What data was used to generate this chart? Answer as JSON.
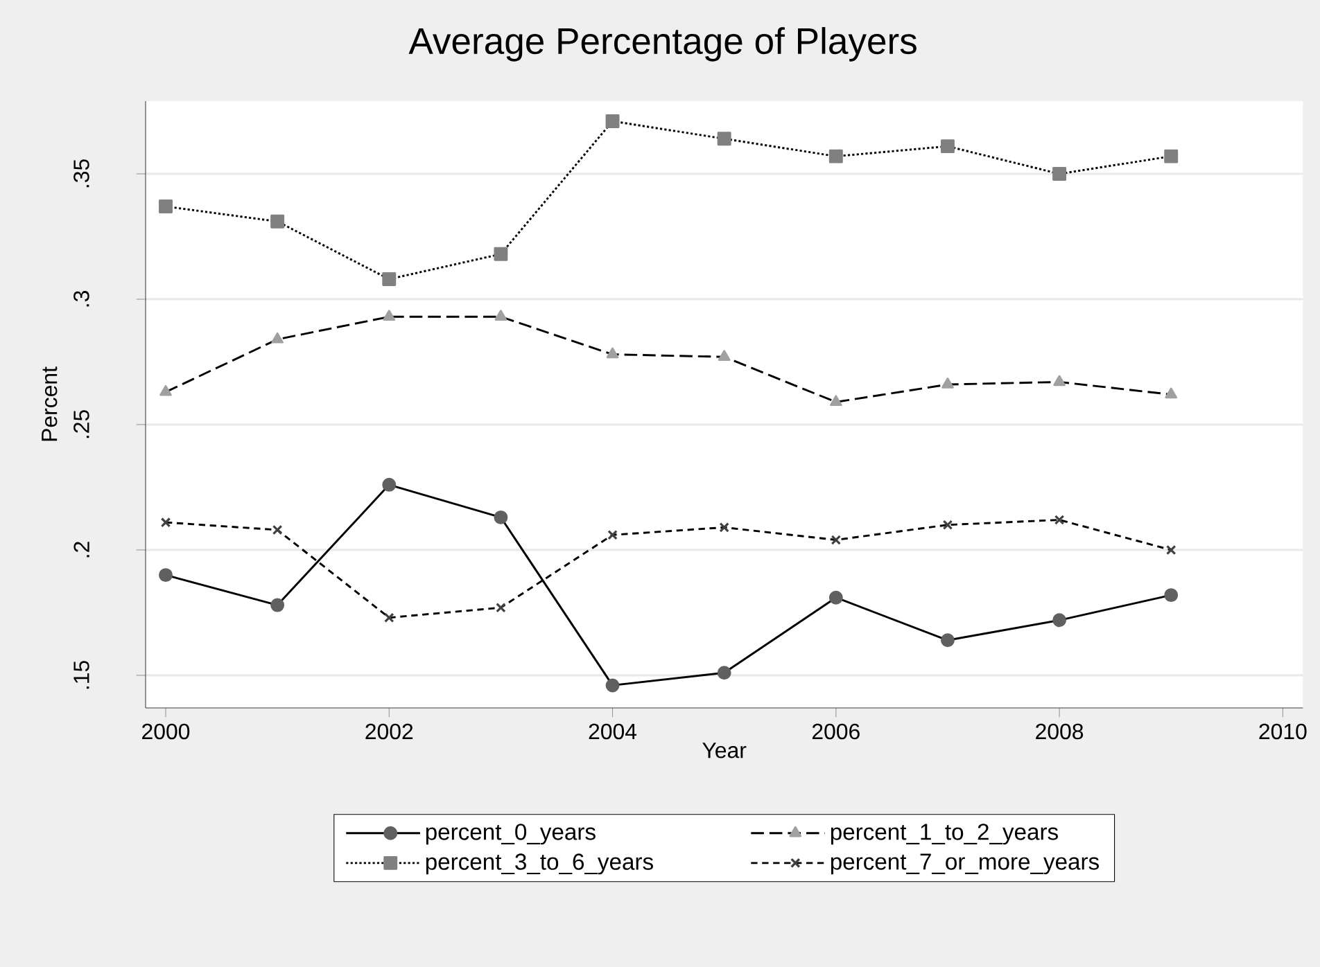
{
  "chart_data": {
    "type": "line",
    "title": "Average Percentage of Players",
    "xlabel": "Year",
    "ylabel": "Percent",
    "x": [
      2000,
      2001,
      2002,
      2003,
      2004,
      2005,
      2006,
      2007,
      2008,
      2009
    ],
    "series": [
      {
        "name": "percent_0_years",
        "color": "#606060",
        "marker": "circle",
        "line_style": "solid",
        "values": [
          0.19,
          0.178,
          0.226,
          0.213,
          0.146,
          0.151,
          0.181,
          0.164,
          0.172,
          0.182
        ]
      },
      {
        "name": "percent_1_to_2_years",
        "color": "#a0a0a0",
        "marker": "triangle",
        "line_style": "dashed",
        "values": [
          0.263,
          0.284,
          0.293,
          0.293,
          0.278,
          0.277,
          0.259,
          0.266,
          0.267,
          0.262
        ]
      },
      {
        "name": "percent_3_to_6_years",
        "color": "#808080",
        "marker": "square",
        "line_style": "dotted",
        "values": [
          0.337,
          0.331,
          0.308,
          0.318,
          0.371,
          0.364,
          0.357,
          0.361,
          0.35,
          0.357
        ]
      },
      {
        "name": "percent_7_or_more_years",
        "color": "#404040",
        "marker": "cross",
        "line_style": "dashed",
        "values": [
          0.211,
          0.208,
          0.173,
          0.177,
          0.206,
          0.209,
          0.204,
          0.21,
          0.212,
          0.2
        ]
      }
    ],
    "xlim": [
      1999.82,
      2010.18
    ],
    "ylim": [
      0.137,
      0.379
    ],
    "xticks": [
      2000,
      2002,
      2004,
      2006,
      2008,
      2010
    ],
    "yticks": [
      {
        "value": 0.15,
        "label": ".15"
      },
      {
        "value": 0.2,
        "label": ".2"
      },
      {
        "value": 0.25,
        "label": ".25"
      },
      {
        "value": 0.3,
        "label": ".3"
      },
      {
        "value": 0.35,
        "label": ".35"
      }
    ],
    "grid": "y",
    "legend": "bottom"
  }
}
